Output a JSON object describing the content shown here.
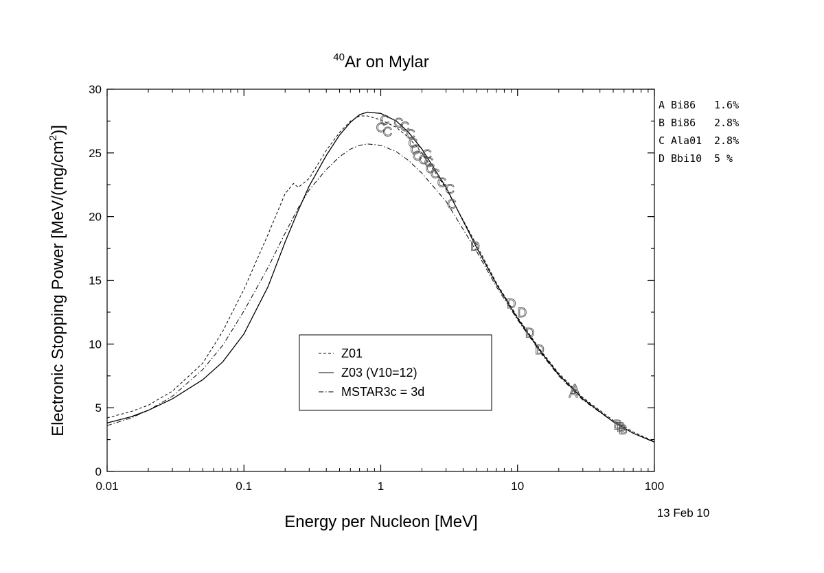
{
  "chart_data": {
    "type": "line",
    "title": {
      "superscript": "40",
      "text": "Ar on Mylar"
    },
    "xlabel": "Energy per Nucleon [MeV]",
    "ylabel": {
      "main": "Electronic Stopping Power [MeV/(mg/cm",
      "superscript": "2",
      "tail": ")]"
    },
    "x_scale": "log",
    "xlim": [
      0.01,
      100
    ],
    "ylim": [
      0,
      30
    ],
    "x_ticks": [
      0.01,
      0.1,
      1,
      10,
      100
    ],
    "x_tick_labels": [
      "0.01",
      "0.1",
      "1",
      "10",
      "100"
    ],
    "y_ticks": [
      0,
      5,
      10,
      15,
      20,
      25,
      30
    ],
    "y_tick_labels": [
      "0",
      "5",
      "10",
      "15",
      "20",
      "25",
      "30"
    ],
    "date_stamp": "13 Feb 10",
    "legend": {
      "placement": "center-bottom",
      "entries": [
        {
          "label": "Z01",
          "dash": "dashed"
        },
        {
          "label": "Z03 (V10=12)",
          "dash": "solid"
        },
        {
          "label": "MSTAR3c = 3d",
          "dash": "dashdot"
        }
      ]
    },
    "data_legend": {
      "placement": "top-right",
      "entries": [
        {
          "letter": "A",
          "ref": "Bi86",
          "error": "1.6%"
        },
        {
          "letter": "B",
          "ref": "Bi86",
          "error": "2.8%"
        },
        {
          "letter": "C",
          "ref": "Ala01",
          "error": "2.8%"
        },
        {
          "letter": "D",
          "ref": "Bbi10",
          "error": "5 %"
        }
      ]
    },
    "series": [
      {
        "name": "Z01",
        "dash": "dashed",
        "points": [
          [
            0.01,
            4.2
          ],
          [
            0.015,
            4.7
          ],
          [
            0.02,
            5.2
          ],
          [
            0.03,
            6.3
          ],
          [
            0.05,
            8.5
          ],
          [
            0.07,
            11.0
          ],
          [
            0.1,
            14.3
          ],
          [
            0.15,
            18.6
          ],
          [
            0.2,
            21.8
          ],
          [
            0.23,
            22.6
          ],
          [
            0.25,
            22.3
          ],
          [
            0.3,
            23.0
          ],
          [
            0.4,
            25.2
          ],
          [
            0.5,
            26.6
          ],
          [
            0.6,
            27.5
          ],
          [
            0.7,
            27.9
          ],
          [
            0.8,
            27.9
          ],
          [
            1.0,
            27.6
          ],
          [
            1.3,
            27.0
          ],
          [
            1.6,
            26.2
          ],
          [
            2,
            25.0
          ],
          [
            3,
            22.2
          ],
          [
            5,
            17.8
          ],
          [
            7,
            14.8
          ],
          [
            10,
            12.1
          ],
          [
            15,
            9.4
          ],
          [
            20,
            7.7
          ],
          [
            30,
            5.8
          ],
          [
            50,
            4.0
          ],
          [
            70,
            3.1
          ],
          [
            100,
            2.35
          ]
        ]
      },
      {
        "name": "Z03 (V10=12)",
        "dash": "solid",
        "points": [
          [
            0.01,
            3.8
          ],
          [
            0.015,
            4.3
          ],
          [
            0.02,
            4.8
          ],
          [
            0.03,
            5.7
          ],
          [
            0.05,
            7.2
          ],
          [
            0.07,
            8.6
          ],
          [
            0.1,
            10.8
          ],
          [
            0.15,
            14.5
          ],
          [
            0.2,
            18.0
          ],
          [
            0.25,
            20.5
          ],
          [
            0.3,
            22.4
          ],
          [
            0.4,
            24.8
          ],
          [
            0.5,
            26.4
          ],
          [
            0.6,
            27.4
          ],
          [
            0.7,
            28.0
          ],
          [
            0.8,
            28.2
          ],
          [
            1.0,
            28.1
          ],
          [
            1.3,
            27.5
          ],
          [
            1.6,
            26.6
          ],
          [
            2,
            25.3
          ],
          [
            3,
            22.3
          ],
          [
            5,
            17.6
          ],
          [
            7,
            14.7
          ],
          [
            10,
            12.0
          ],
          [
            15,
            9.3
          ],
          [
            20,
            7.6
          ],
          [
            30,
            5.7
          ],
          [
            50,
            3.9
          ],
          [
            70,
            3.0
          ],
          [
            100,
            2.3
          ]
        ]
      },
      {
        "name": "MSTAR3c = 3d",
        "dash": "dashdot",
        "points": [
          [
            0.01,
            3.6
          ],
          [
            0.015,
            4.2
          ],
          [
            0.02,
            4.8
          ],
          [
            0.03,
            5.9
          ],
          [
            0.05,
            8.0
          ],
          [
            0.07,
            9.9
          ],
          [
            0.1,
            12.6
          ],
          [
            0.15,
            16.0
          ],
          [
            0.2,
            18.7
          ],
          [
            0.25,
            20.7
          ],
          [
            0.3,
            22.1
          ],
          [
            0.4,
            23.7
          ],
          [
            0.5,
            24.7
          ],
          [
            0.6,
            25.3
          ],
          [
            0.7,
            25.6
          ],
          [
            0.8,
            25.7
          ],
          [
            1.0,
            25.6
          ],
          [
            1.3,
            25.1
          ],
          [
            1.6,
            24.4
          ],
          [
            2,
            23.4
          ],
          [
            3,
            21.2
          ],
          [
            5,
            17.3
          ],
          [
            7,
            14.5
          ],
          [
            10,
            11.9
          ],
          [
            15,
            9.2
          ],
          [
            20,
            7.5
          ],
          [
            30,
            5.6
          ],
          [
            50,
            3.9
          ],
          [
            70,
            3.0
          ],
          [
            100,
            2.3
          ]
        ]
      }
    ],
    "data_points": [
      {
        "label": "A",
        "x": 25.5,
        "y": 6.2
      },
      {
        "label": "A",
        "x": 26.2,
        "y": 6.5
      },
      {
        "label": "B",
        "x": 54,
        "y": 3.7
      },
      {
        "label": "B",
        "x": 57,
        "y": 3.5
      },
      {
        "label": "B",
        "x": 59,
        "y": 3.3
      },
      {
        "label": "C",
        "x": 1.0,
        "y": 27.0
      },
      {
        "label": "C",
        "x": 1.07,
        "y": 27.6
      },
      {
        "label": "C",
        "x": 1.12,
        "y": 26.7
      },
      {
        "label": "C",
        "x": 1.35,
        "y": 27.4
      },
      {
        "label": "C",
        "x": 1.5,
        "y": 27.1
      },
      {
        "label": "C",
        "x": 1.65,
        "y": 26.5
      },
      {
        "label": "C",
        "x": 1.72,
        "y": 25.8
      },
      {
        "label": "C",
        "x": 1.78,
        "y": 25.3
      },
      {
        "label": "C",
        "x": 1.85,
        "y": 24.8
      },
      {
        "label": "C",
        "x": 2.05,
        "y": 24.5
      },
      {
        "label": "C",
        "x": 2.18,
        "y": 24.9
      },
      {
        "label": "C",
        "x": 2.25,
        "y": 24.3
      },
      {
        "label": "C",
        "x": 2.3,
        "y": 23.8
      },
      {
        "label": "C",
        "x": 2.5,
        "y": 23.4
      },
      {
        "label": "C",
        "x": 2.8,
        "y": 22.7
      },
      {
        "label": "C",
        "x": 3.2,
        "y": 22.2
      },
      {
        "label": "C",
        "x": 3.3,
        "y": 21.0
      },
      {
        "label": "D",
        "x": 4.9,
        "y": 17.7
      },
      {
        "label": "D",
        "x": 9.0,
        "y": 13.2
      },
      {
        "label": "D",
        "x": 10.8,
        "y": 12.5
      },
      {
        "label": "D",
        "x": 12.3,
        "y": 10.9
      },
      {
        "label": "D",
        "x": 14.5,
        "y": 9.6
      }
    ]
  }
}
